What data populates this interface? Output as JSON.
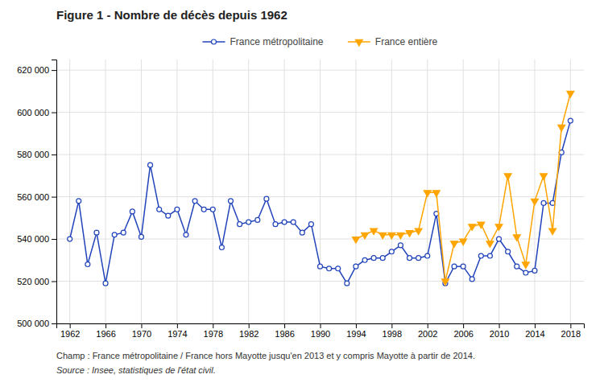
{
  "chart_data": {
    "type": "line",
    "title": "Figure 1 - Nombre de décès depuis 1962",
    "annotations": [
      "Champ : France métropolitaine / France hors Mayotte jusqu'en 2013 et y compris Mayotte à partir de 2014.",
      "Source : Insee, statistiques de l'état civil."
    ],
    "xlim": [
      1960.5,
      2019.5
    ],
    "xticks": [
      1962,
      1966,
      1970,
      1974,
      1978,
      1982,
      1986,
      1990,
      1994,
      1998,
      2002,
      2006,
      2010,
      2014,
      2018
    ],
    "ylim": [
      500000,
      625000
    ],
    "yticks": [
      {
        "value": 500000,
        "label": "500 000"
      },
      {
        "value": 520000,
        "label": "520 000"
      },
      {
        "value": 540000,
        "label": "540 000"
      },
      {
        "value": 560000,
        "label": "560 000"
      },
      {
        "value": 580000,
        "label": "580 000"
      },
      {
        "value": 600000,
        "label": "600 000"
      },
      {
        "value": 620000,
        "label": "620 000"
      }
    ],
    "grid": true,
    "legend": "top",
    "series": [
      {
        "name": "France métropolitaine",
        "color": "#2244bb",
        "marker": "circle",
        "x": [
          1962,
          1963,
          1964,
          1965,
          1966,
          1967,
          1968,
          1969,
          1970,
          1971,
          1972,
          1973,
          1974,
          1975,
          1976,
          1977,
          1978,
          1979,
          1980,
          1981,
          1982,
          1983,
          1984,
          1985,
          1986,
          1987,
          1988,
          1989,
          1990,
          1991,
          1992,
          1993,
          1994,
          1995,
          1996,
          1997,
          1998,
          1999,
          2000,
          2001,
          2002,
          2003,
          2004,
          2005,
          2006,
          2007,
          2008,
          2009,
          2010,
          2011,
          2012,
          2013,
          2014,
          2015,
          2016,
          2017,
          2018
        ],
        "values": [
          540000,
          558000,
          528000,
          543000,
          519000,
          542000,
          543000,
          553000,
          541000,
          575000,
          554000,
          551000,
          554000,
          542000,
          558000,
          554000,
          554000,
          536000,
          558000,
          547000,
          548000,
          549000,
          559000,
          547000,
          548000,
          548000,
          543000,
          547000,
          527000,
          526000,
          526000,
          519000,
          527000,
          530000,
          531000,
          531000,
          534000,
          537000,
          531000,
          531000,
          532000,
          552000,
          519000,
          527000,
          527000,
          521000,
          532000,
          532000,
          540000,
          534000,
          527000,
          524000,
          525000,
          557000,
          557000,
          581000,
          596000
        ]
      },
      {
        "name": "France entière",
        "color": "#FFA500",
        "marker": "triangle-down",
        "x": [
          1994,
          1995,
          1996,
          1997,
          1998,
          1999,
          2000,
          2001,
          2002,
          2003,
          2004,
          2005,
          2006,
          2007,
          2008,
          2009,
          2010,
          2011,
          2012,
          2013,
          2014,
          2015,
          2016,
          2017,
          2018
        ],
        "values": [
          540000,
          542000,
          544000,
          542000,
          542000,
          542000,
          543000,
          544000,
          562000,
          562000,
          520000,
          538000,
          539000,
          546000,
          547000,
          538000,
          546000,
          570000,
          541000,
          528000,
          558000,
          570000,
          544000,
          593000,
          609000
        ]
      }
    ]
  }
}
